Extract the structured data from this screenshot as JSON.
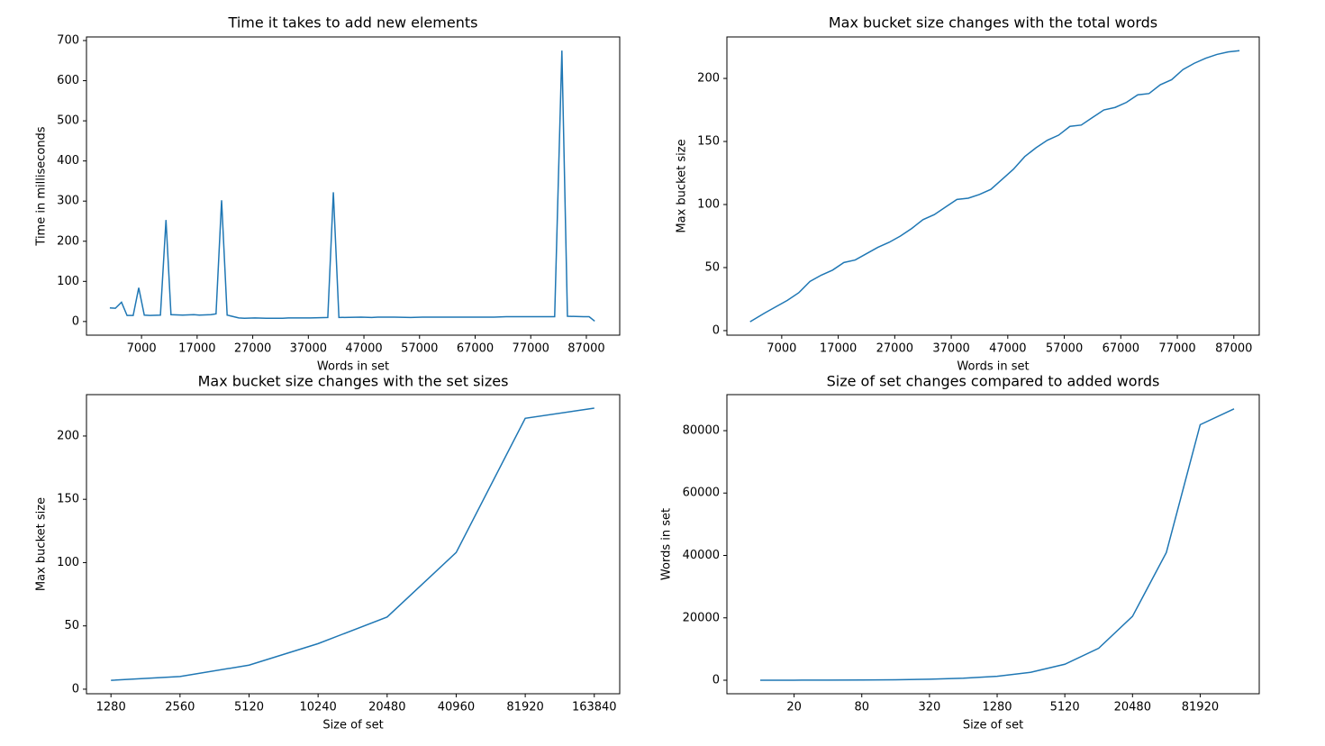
{
  "chart_data": [
    {
      "type": "line",
      "title": "Time it takes to add new elements",
      "xlabel": "Words in set",
      "ylabel": "Time in milliseconds",
      "color": "#1f77b4",
      "xscale": "linear",
      "x": [
        1300,
        2300,
        3400,
        4400,
        5500,
        6500,
        7500,
        8500,
        10400,
        11400,
        12300,
        14400,
        16400,
        17400,
        19500,
        20400,
        21400,
        22400,
        24500,
        25500,
        27400,
        29400,
        32400,
        33400,
        37400,
        40500,
        41500,
        42500,
        46500,
        48400,
        49500,
        52500,
        55400,
        57500,
        67400,
        70400,
        72600,
        77400,
        81300,
        82600,
        83600,
        86500,
        87500,
        88500
      ],
      "values": [
        34,
        33,
        48,
        15,
        15,
        84,
        16,
        15,
        16,
        253,
        17,
        16,
        17,
        16,
        17,
        19,
        302,
        16,
        9,
        8,
        9,
        8,
        8,
        9,
        9,
        10,
        322,
        10,
        11,
        10,
        11,
        11,
        10,
        11,
        11,
        11,
        12,
        12,
        12,
        675,
        13,
        12,
        12,
        1
      ],
      "xlim": [
        -2900,
        93000
      ],
      "xticks": [
        7000,
        17000,
        27000,
        37000,
        47000,
        57000,
        67000,
        77000,
        87000
      ],
      "ylim": [
        -34,
        709
      ],
      "yticks": [
        0,
        100,
        200,
        300,
        400,
        500,
        600,
        700
      ]
    },
    {
      "type": "line",
      "title": "Max bucket size changes with the total words",
      "xlabel": "Words in set",
      "ylabel": "Max bucket size",
      "color": "#1f77b4",
      "xscale": "linear",
      "x": [
        1400,
        4000,
        6000,
        8000,
        10000,
        12000,
        14000,
        16000,
        18000,
        20000,
        22000,
        24000,
        26000,
        28000,
        30000,
        32000,
        34000,
        36000,
        38000,
        40000,
        42000,
        44000,
        46000,
        48000,
        50000,
        52000,
        54000,
        56000,
        58000,
        60000,
        62000,
        64000,
        66000,
        68000,
        70000,
        72000,
        74000,
        76000,
        78000,
        80000,
        82000,
        84000,
        86000,
        88000
      ],
      "values": [
        7,
        14,
        19,
        24,
        30,
        39,
        44,
        48,
        54,
        56,
        61,
        66,
        70,
        75,
        81,
        88,
        92,
        98,
        104,
        105,
        108,
        112,
        120,
        128,
        138,
        145,
        151,
        155,
        162,
        163,
        169,
        175,
        177,
        181,
        187,
        188,
        195,
        199,
        207,
        212,
        216,
        219,
        221,
        222
      ],
      "xlim": [
        -2700,
        91500
      ],
      "xticks": [
        7000,
        17000,
        27000,
        37000,
        47000,
        57000,
        67000,
        77000,
        87000
      ],
      "ylim": [
        -3.6,
        232.9
      ],
      "yticks": [
        0,
        50,
        100,
        150,
        200
      ]
    },
    {
      "type": "line",
      "title": "Max bucket size changes with the set sizes",
      "xlabel": "Size of set",
      "ylabel": "Max bucket size",
      "color": "#1f77b4",
      "xscale": "log",
      "x": [
        1280,
        2560,
        5120,
        10240,
        20480,
        40960,
        81920,
        163840
      ],
      "values": [
        7,
        10,
        19,
        36,
        57,
        108,
        214,
        222
      ],
      "xlim": [
        1001,
        211500
      ],
      "xticks": [
        1280,
        2560,
        5120,
        10240,
        20480,
        40960,
        81920,
        163840
      ],
      "ylim": [
        -3.6,
        232.7
      ],
      "yticks": [
        0,
        50,
        100,
        150,
        200
      ]
    },
    {
      "type": "line",
      "title": "Size of set changes compared to added words",
      "xlabel": "Size of set",
      "ylabel": "Words in set",
      "color": "#1f77b4",
      "xscale": "log",
      "x": [
        10,
        20,
        40,
        80,
        160,
        320,
        640,
        1280,
        2560,
        5120,
        10240,
        20480,
        40960,
        81920,
        163840
      ],
      "values": [
        10,
        20,
        40,
        80,
        160,
        320,
        640,
        1280,
        2560,
        5120,
        10240,
        20480,
        40960,
        81920,
        87000
      ],
      "xlim": [
        5.05,
        274600
      ],
      "xticks": [
        20,
        80,
        320,
        1280,
        5120,
        20480,
        81920
      ],
      "ylim": [
        -4330,
        91550
      ],
      "yticks": [
        0,
        20000,
        40000,
        60000,
        80000
      ]
    }
  ]
}
